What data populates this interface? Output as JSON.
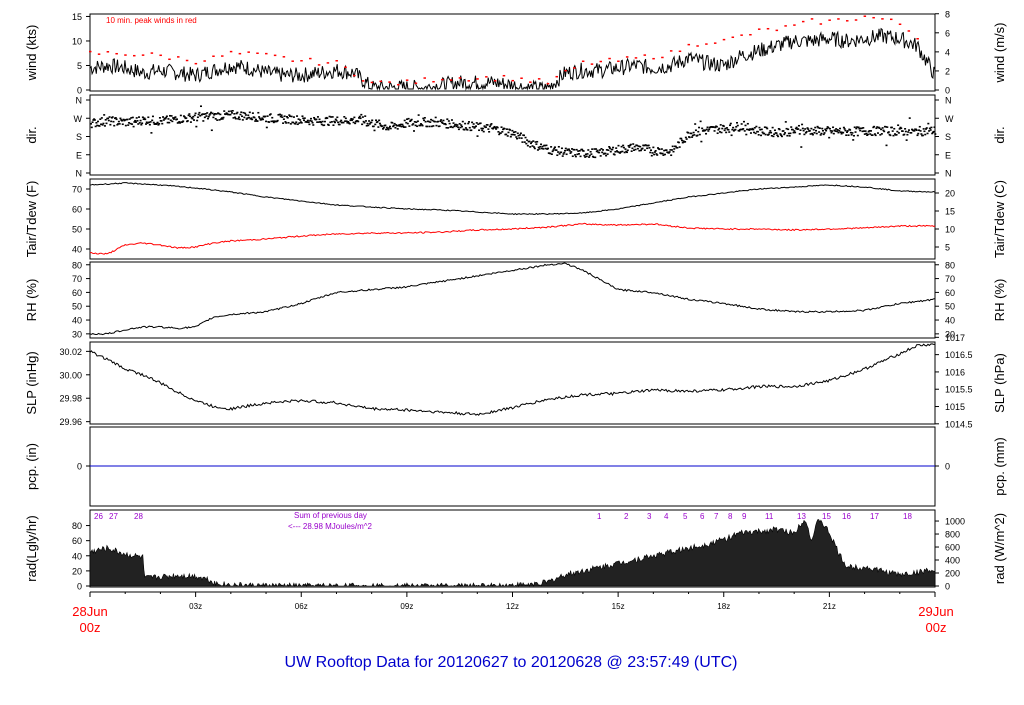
{
  "footer_title": "UW Rooftop Data for 20120627  to  20120628 @ 23:57:49  (UTC)",
  "colors": {
    "frame": "#000000",
    "red": "#ff0000",
    "blue": "#0000cc",
    "purple": "#9900cc"
  },
  "time_axis": {
    "ticks": [
      "03z",
      "06z",
      "09z",
      "12z",
      "15z",
      "18z",
      "21z"
    ],
    "start_date": "28Jun",
    "start_time": "00z",
    "end_date": "29Jun",
    "end_time": "00z"
  },
  "panels": [
    {
      "left_label": "wind (kts)",
      "right_label": "wind (m/s)",
      "left_ticks": [
        "15",
        "10",
        "5",
        "0"
      ],
      "right_ticks": [
        "8",
        "6",
        "4",
        "2",
        "0"
      ],
      "annotation": "10 min. peak winds in red"
    },
    {
      "left_label": "dir.",
      "right_label": "dir.",
      "left_ticks": [
        "N",
        "W",
        "S",
        "E",
        "N"
      ],
      "right_ticks": [
        "N",
        "W",
        "S",
        "E",
        "N"
      ]
    },
    {
      "left_label": "Tair/Tdew (F)",
      "right_label": "Tair/Tdew (C)",
      "left_ticks": [
        "70",
        "60",
        "50",
        "40"
      ],
      "right_ticks": [
        "20",
        "15",
        "10",
        "5"
      ]
    },
    {
      "left_label": "RH (%)",
      "right_label": "RH (%)",
      "left_ticks": [
        "80",
        "70",
        "60",
        "50",
        "40",
        "30"
      ],
      "right_ticks": [
        "80",
        "70",
        "60",
        "50",
        "40",
        "30"
      ]
    },
    {
      "left_label": "SLP (inHg)",
      "right_label": "SLP (hPa)",
      "left_ticks": [
        "30.02",
        "30.00",
        "29.98",
        "29.96"
      ],
      "right_ticks": [
        "1017",
        "1016.5",
        "1016",
        "1015.5",
        "1015",
        "1014.5"
      ]
    },
    {
      "left_label": "pcp. (in)",
      "right_label": "pcp. (mm)",
      "left_ticks": [
        "0"
      ],
      "right_ticks": [
        "0"
      ]
    },
    {
      "left_label": "rad(Lgly/hr)",
      "right_label": "rad (W/m^2)",
      "left_ticks": [
        "80",
        "60",
        "40",
        "20",
        "0"
      ],
      "right_ticks": [
        "1000",
        "800",
        "600",
        "400",
        "200",
        "0"
      ],
      "prev_day_hours": [
        "26",
        "27",
        "28"
      ],
      "hour_marks": [
        "1",
        "2",
        "3",
        "4",
        "5",
        "6",
        "7",
        "8",
        "9",
        "11",
        "13",
        "15",
        "16",
        "17",
        "18"
      ],
      "sum_label": "Sum of previous day",
      "sum_value": "<--- 28.98 MJoules/m^2"
    }
  ],
  "chart_data": {
    "type": "line",
    "x_unit": "hour UTC",
    "x_range": [
      0,
      24
    ],
    "series": [
      {
        "name": "wind speed",
        "unit": "kts",
        "x": [
          0,
          0.5,
          1,
          1.5,
          2,
          2.5,
          3,
          3.5,
          4,
          4.5,
          5,
          5.5,
          6,
          6.5,
          7,
          7.5,
          8,
          8.5,
          9,
          9.5,
          10,
          10.5,
          11,
          11.5,
          12,
          12.5,
          13,
          13.5,
          14,
          14.5,
          15,
          15.5,
          16,
          16.5,
          17,
          17.5,
          18,
          18.5,
          19,
          19.5,
          20,
          20.5,
          21,
          21.5,
          22,
          22.5,
          23,
          23.5,
          24
        ],
        "y": [
          4.5,
          5,
          4.5,
          3.5,
          4,
          3.5,
          3,
          4,
          5,
          4.5,
          3.5,
          3,
          3,
          3.5,
          4,
          3.5,
          0.5,
          0.5,
          0.5,
          0.5,
          1,
          1.5,
          1.5,
          1.5,
          1,
          0.3,
          0.3,
          3.5,
          4,
          4,
          4.5,
          5,
          4.5,
          5,
          6.5,
          5.5,
          5,
          7,
          8,
          9,
          10,
          10,
          10.5,
          10,
          10.5,
          11,
          10.5,
          9,
          3
        ]
      },
      {
        "name": "10 min peak wind",
        "unit": "kts",
        "x": [
          0,
          1,
          2,
          3,
          3.5,
          4,
          5,
          6,
          7,
          8,
          9,
          10,
          11,
          12,
          13,
          14,
          15,
          15.5,
          16,
          16.5,
          17,
          17.5,
          18,
          18.5,
          19,
          19.5,
          20,
          20.5,
          21,
          21.5,
          22,
          22.5,
          23,
          23.5
        ],
        "y": [
          7.5,
          7.5,
          7,
          6,
          6.5,
          7.5,
          7,
          6,
          5.5,
          1.5,
          1.5,
          2.5,
          2.5,
          2.5,
          1.5,
          5.5,
          6,
          6.5,
          7,
          7.5,
          9,
          10,
          10,
          11,
          12,
          12.5,
          13,
          14,
          14,
          14.5,
          15,
          14.5,
          13.5,
          11
        ]
      },
      {
        "name": "wind direction",
        "unit": "deg",
        "x": [
          0,
          0.5,
          1,
          1.5,
          2,
          2.5,
          3,
          3.5,
          4,
          4.5,
          5,
          5.5,
          6,
          6.5,
          7,
          7.5,
          8,
          8.5,
          9,
          9.5,
          10,
          10.5,
          11,
          11.5,
          12,
          12.5,
          13,
          13.5,
          14,
          14.5,
          15,
          15.5,
          16,
          16.5,
          17,
          17.5,
          18,
          18.5,
          19,
          19.5,
          20,
          20.5,
          21,
          21.5,
          22,
          22.5,
          23,
          23.5,
          24
        ],
        "y": [
          250,
          260,
          255,
          265,
          260,
          270,
          280,
          285,
          290,
          285,
          275,
          270,
          265,
          260,
          262,
          265,
          250,
          230,
          250,
          255,
          250,
          240,
          230,
          220,
          200,
          150,
          120,
          105,
          100,
          105,
          120,
          130,
          115,
          110,
          200,
          215,
          225,
          235,
          210,
          205,
          210,
          212,
          210,
          208,
          210,
          212,
          208,
          210,
          212
        ]
      },
      {
        "name": "Tair",
        "unit": "F",
        "x": [
          0,
          1,
          2,
          3,
          4,
          5,
          6,
          7,
          8,
          9,
          10,
          11,
          12,
          13,
          14,
          15,
          16,
          17,
          18,
          19,
          20,
          21,
          22,
          23,
          24
        ],
        "y": [
          72,
          73,
          72,
          70.5,
          68.5,
          66,
          64,
          62,
          61,
          60,
          59.5,
          58.5,
          57.5,
          57.5,
          58,
          60,
          63,
          66,
          68,
          70,
          71,
          72,
          71,
          69,
          68.5
        ]
      },
      {
        "name": "Tdew",
        "unit": "F",
        "x": [
          0,
          0.5,
          1,
          1.5,
          2,
          2.5,
          3,
          3.5,
          4,
          5,
          6,
          7,
          8,
          9,
          10,
          11,
          12,
          13,
          14,
          15,
          16,
          17,
          18,
          19,
          20,
          21,
          22,
          23,
          24
        ],
        "y": [
          38,
          37.5,
          42,
          43,
          42,
          40.5,
          41,
          43,
          44,
          45,
          46.5,
          47.5,
          48,
          48,
          48.5,
          49.5,
          50,
          51,
          52.5,
          52,
          52.5,
          50.5,
          50,
          50,
          49.5,
          50,
          50.5,
          51.5,
          51.5
        ]
      },
      {
        "name": "RH",
        "unit": "%",
        "x": [
          0,
          0.5,
          1,
          1.5,
          2,
          2.5,
          3,
          3.5,
          4,
          5,
          6,
          7,
          8,
          9,
          10,
          11,
          12,
          13,
          13.5,
          14,
          15,
          16,
          17,
          18,
          19,
          20,
          21,
          22,
          23,
          24
        ],
        "y": [
          30,
          30,
          33,
          35,
          35,
          34,
          35,
          42,
          44,
          46,
          52,
          60,
          62,
          64,
          68,
          72,
          76,
          80,
          81,
          76,
          62,
          60,
          55,
          52,
          48,
          46,
          46,
          47,
          52,
          55
        ]
      },
      {
        "name": "SLP",
        "unit": "inHg",
        "x": [
          0,
          0.5,
          1,
          1.5,
          2,
          2.5,
          3,
          3.5,
          4,
          5,
          6,
          7,
          8,
          9,
          10,
          11,
          12,
          13,
          14,
          15,
          16,
          17,
          18,
          19,
          20,
          21,
          22,
          23,
          23.5,
          24
        ],
        "y": [
          30.02,
          30.013,
          30.005,
          30.0,
          29.993,
          29.985,
          29.978,
          29.973,
          29.971,
          29.976,
          29.978,
          29.976,
          29.971,
          29.97,
          29.968,
          29.966,
          29.972,
          29.979,
          29.983,
          29.984,
          29.987,
          29.986,
          29.987,
          29.99,
          29.99,
          29.995,
          30.005,
          30.018,
          30.025,
          30.026
        ]
      },
      {
        "name": "precipitation",
        "unit": "in",
        "x": [
          0,
          24
        ],
        "y": [
          0,
          0
        ]
      },
      {
        "name": "solar radiation",
        "unit": "Lgly/hr",
        "x": [
          0,
          0.5,
          1,
          1.5,
          1.55,
          2,
          2.5,
          3,
          3.3,
          3.6,
          4,
          4.5,
          5,
          6,
          8,
          11,
          12,
          12.5,
          13,
          13.5,
          14,
          14.5,
          15,
          15.5,
          16,
          16.5,
          17,
          17.5,
          18,
          18.5,
          19,
          19.5,
          20,
          20.3,
          20.5,
          20.7,
          21,
          21.3,
          21.5,
          22,
          22.5,
          23,
          23.5,
          23.8,
          24
        ],
        "y": [
          45,
          50,
          42,
          38,
          10,
          12,
          14,
          13,
          10,
          3,
          1.5,
          0.5,
          0.3,
          0,
          0,
          0,
          1,
          2,
          5,
          15,
          20,
          25,
          30,
          35,
          40,
          45,
          50,
          55,
          62,
          70,
          72,
          75,
          70,
          90,
          60,
          90,
          70,
          40,
          25,
          25,
          20,
          15,
          18,
          22,
          15
        ]
      }
    ]
  }
}
